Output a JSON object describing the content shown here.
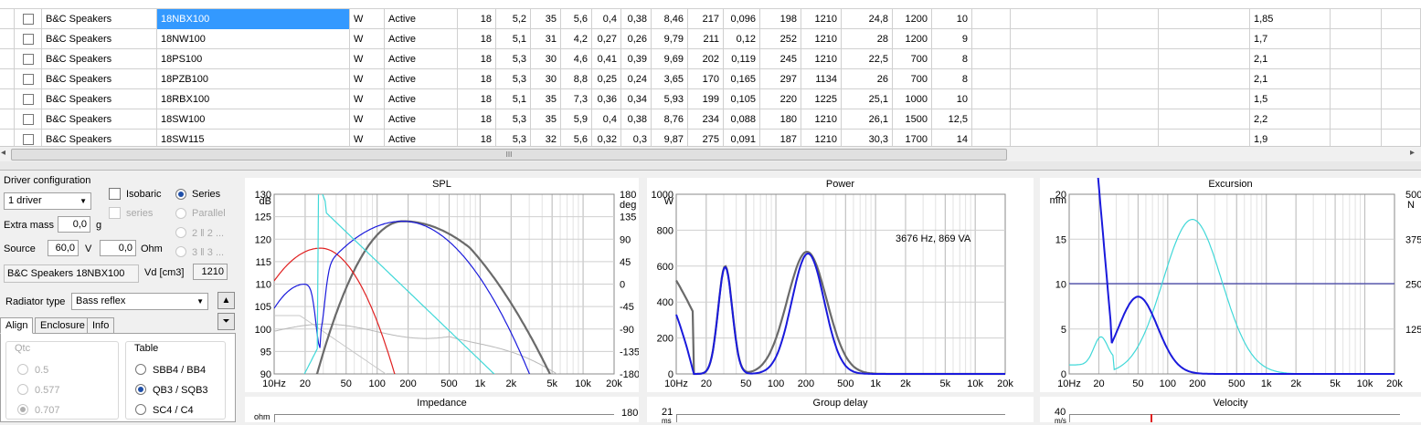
{
  "grid": {
    "rows": [
      {
        "brand": "B&C Speakers",
        "model": "18NBX100",
        "type": "W",
        "status": "Active",
        "c1": "18",
        "c2": "5,2",
        "c3": "35",
        "c4": "5,6",
        "c5": "0,4",
        "c6": "0,38",
        "c7": "8,46",
        "c8": "217",
        "c9": "0,096",
        "c10": "198",
        "c11": "1210",
        "c12": "24,8",
        "c13": "1200",
        "c14": "10",
        "c15": "1,85"
      },
      {
        "brand": "B&C Speakers",
        "model": "18NW100",
        "type": "W",
        "status": "Active",
        "c1": "18",
        "c2": "5,1",
        "c3": "31",
        "c4": "4,2",
        "c5": "0,27",
        "c6": "0,26",
        "c7": "9,79",
        "c8": "211",
        "c9": "0,12",
        "c10": "252",
        "c11": "1210",
        "c12": "28",
        "c13": "1200",
        "c14": "9",
        "c15": "1,7"
      },
      {
        "brand": "B&C Speakers",
        "model": "18PS100",
        "type": "W",
        "status": "Active",
        "c1": "18",
        "c2": "5,3",
        "c3": "30",
        "c4": "4,6",
        "c5": "0,41",
        "c6": "0,39",
        "c7": "9,69",
        "c8": "202",
        "c9": "0,119",
        "c10": "245",
        "c11": "1210",
        "c12": "22,5",
        "c13": "700",
        "c14": "8",
        "c15": "2,1"
      },
      {
        "brand": "B&C Speakers",
        "model": "18PZB100",
        "type": "W",
        "status": "Active",
        "c1": "18",
        "c2": "5,3",
        "c3": "30",
        "c4": "8,8",
        "c5": "0,25",
        "c6": "0,24",
        "c7": "3,65",
        "c8": "170",
        "c9": "0,165",
        "c10": "297",
        "c11": "1134",
        "c12": "26",
        "c13": "700",
        "c14": "8",
        "c15": "2,1"
      },
      {
        "brand": "B&C Speakers",
        "model": "18RBX100",
        "type": "W",
        "status": "Active",
        "c1": "18",
        "c2": "5,1",
        "c3": "35",
        "c4": "7,3",
        "c5": "0,36",
        "c6": "0,34",
        "c7": "5,93",
        "c8": "199",
        "c9": "0,105",
        "c10": "220",
        "c11": "1225",
        "c12": "25,1",
        "c13": "1000",
        "c14": "10",
        "c15": "1,5"
      },
      {
        "brand": "B&C Speakers",
        "model": "18SW100",
        "type": "W",
        "status": "Active",
        "c1": "18",
        "c2": "5,3",
        "c3": "35",
        "c4": "5,9",
        "c5": "0,4",
        "c6": "0,38",
        "c7": "8,76",
        "c8": "234",
        "c9": "0,088",
        "c10": "180",
        "c11": "1210",
        "c12": "26,1",
        "c13": "1500",
        "c14": "12,5",
        "c15": "2,2"
      },
      {
        "brand": "B&C Speakers",
        "model": "18SW115",
        "type": "W",
        "status": "Active",
        "c1": "18",
        "c2": "5,3",
        "c3": "32",
        "c4": "5,6",
        "c5": "0,32",
        "c6": "0,3",
        "c7": "9,87",
        "c8": "275",
        "c9": "0,091",
        "c10": "187",
        "c11": "1210",
        "c12": "30,3",
        "c13": "1700",
        "c14": "14",
        "c15": "1,9"
      }
    ],
    "scroll_grip": "III",
    "left_arrow": "◂",
    "right_arrow": "▸"
  },
  "config": {
    "driver_configuration_label": "Driver configuration",
    "driver_count": "1 driver",
    "isobaric_label": "Isobaric",
    "series_radio_label": "Series",
    "series_check_label": "series",
    "parallel_label": "Parallel",
    "two_label": "2 ‖ 2 ...",
    "three_label": "3 ‖ 3 ...",
    "extra_mass_label": "Extra mass",
    "extra_mass_value": "0,0",
    "extra_mass_unit": "g",
    "source_label": "Source",
    "source_value": "60,0",
    "source_unit": "V",
    "ohm_value": "0,0",
    "ohm_unit": "Ohm",
    "driver_name": "B&C Speakers 18NBX100",
    "vd_label": "Vd [cm3]",
    "vd_value": "1210",
    "radiator_type_label": "Radiator type",
    "radiator_type_value": "Bass reflex",
    "tabs": [
      "Align",
      "Enclosure",
      "Info"
    ],
    "qtc_label": "Qtc",
    "qtc_options": [
      "0.5",
      "0.577",
      "0.707"
    ],
    "table_label": "Table",
    "table_options": [
      "SBB4 / BB4",
      "QB3 / SQB3",
      "SC4 / C4"
    ]
  },
  "charts": {
    "spl": {
      "title": "SPL",
      "yunit": "dB",
      "y2unit": "deg",
      "yticks": [
        "130",
        "125",
        "120",
        "115",
        "110",
        "105",
        "100",
        "95",
        "90"
      ],
      "y2ticks": [
        "180",
        "135",
        "90",
        "45",
        "0",
        "-45",
        "-90",
        "-135",
        "-180"
      ],
      "xticks": [
        "10Hz",
        "20",
        "50",
        "100",
        "200",
        "500",
        "1k",
        "2k",
        "5k",
        "10k",
        "20k"
      ]
    },
    "power": {
      "title": "Power",
      "yunit": "W",
      "yticks": [
        "1000",
        "800",
        "600",
        "400",
        "200",
        "0"
      ],
      "annotation": "3676 Hz, 869 VA",
      "xticks": [
        "10Hz",
        "20",
        "50",
        "100",
        "200",
        "500",
        "1k",
        "2k",
        "5k",
        "10k",
        "20k"
      ]
    },
    "excursion": {
      "title": "Excursion",
      "yunit": "mm",
      "y2unit": "N",
      "yticks": [
        "20",
        "15",
        "10",
        "5",
        "0"
      ],
      "y2ticks": [
        "500",
        "375",
        "250",
        "125"
      ],
      "xticks": [
        "10Hz",
        "20",
        "50",
        "100",
        "200",
        "500",
        "1k",
        "2k",
        "5k",
        "10k",
        "20k"
      ]
    },
    "impedance": {
      "title": "Impedance",
      "yunit": "ohm",
      "ytop": "",
      "y2top": "180"
    },
    "group_delay": {
      "title": "Group delay",
      "ytop": "21",
      "yunit": "ms"
    },
    "velocity": {
      "title": "Velocity",
      "ytop": "40",
      "yunit": "m/s"
    }
  },
  "colors": {
    "selection": "#3399ff",
    "blue": "#1a1adc",
    "gray": "#6a6a6a",
    "cyan": "#40d8d8",
    "red": "#e02020"
  }
}
